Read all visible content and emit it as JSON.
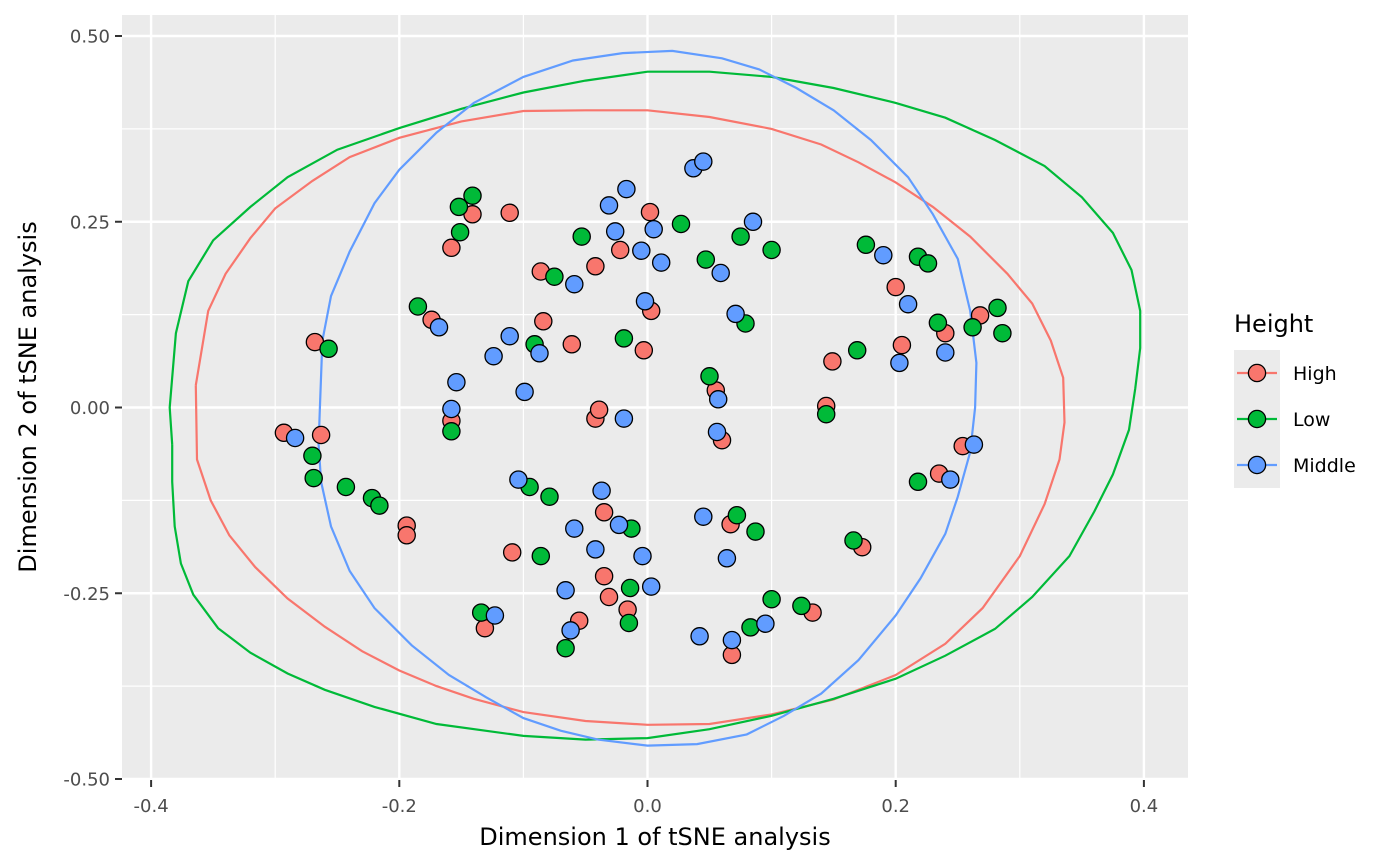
{
  "chart_data": {
    "type": "scatter",
    "title": "",
    "xlabel": "Dimension 1 of tSNE analysis",
    "ylabel": "Dimension 2 of tSNE analysis",
    "xlim": [
      -0.4,
      0.4
    ],
    "ylim": [
      -0.5,
      0.5
    ],
    "x_ticks": [
      -0.4,
      -0.2,
      0.0,
      0.2,
      0.4
    ],
    "x_tick_labels": [
      "-0.4",
      "-0.2",
      "0.0",
      "0.2",
      "0.4"
    ],
    "y_ticks": [
      -0.5,
      -0.25,
      0.0,
      0.25,
      0.5
    ],
    "y_tick_labels": [
      "-0.50",
      "-0.25",
      "0.00",
      "0.25",
      "0.50"
    ],
    "grid": true,
    "legend": {
      "title": "Height",
      "position": "right"
    },
    "series": [
      {
        "name": "High",
        "color": "#F8766D",
        "points": [
          [
            -0.268,
            0.088
          ],
          [
            -0.263,
            -0.037
          ],
          [
            -0.293,
            -0.034
          ],
          [
            -0.194,
            -0.159
          ],
          [
            -0.194,
            -0.172
          ],
          [
            -0.174,
            0.118
          ],
          [
            -0.158,
            -0.018
          ],
          [
            -0.158,
            0.215
          ],
          [
            -0.141,
            0.26
          ],
          [
            -0.111,
            0.262
          ],
          [
            -0.086,
            0.183
          ],
          [
            -0.084,
            0.116
          ],
          [
            -0.061,
            0.085
          ],
          [
            -0.042,
            0.19
          ],
          [
            -0.042,
            -0.015
          ],
          [
            -0.039,
            -0.003
          ],
          [
            -0.022,
            0.212
          ],
          [
            0.002,
            0.263
          ],
          [
            0.003,
            0.13
          ],
          [
            -0.003,
            0.077
          ],
          [
            -0.109,
            -0.195
          ],
          [
            -0.131,
            -0.297
          ],
          [
            -0.035,
            -0.227
          ],
          [
            -0.035,
            -0.141
          ],
          [
            -0.031,
            -0.255
          ],
          [
            -0.016,
            -0.272
          ],
          [
            -0.055,
            -0.287
          ],
          [
            0.055,
            0.023
          ],
          [
            0.06,
            -0.044
          ],
          [
            0.067,
            -0.157
          ],
          [
            0.068,
            -0.333
          ],
          [
            0.133,
            -0.276
          ],
          [
            0.144,
            0.002
          ],
          [
            0.149,
            0.062
          ],
          [
            0.173,
            -0.188
          ],
          [
            0.2,
            0.162
          ],
          [
            0.205,
            0.084
          ],
          [
            0.235,
            -0.089
          ],
          [
            0.24,
            0.1
          ],
          [
            0.254,
            -0.052
          ],
          [
            0.268,
            0.124
          ]
        ]
      },
      {
        "name": "Low",
        "color": "#00BA38",
        "points": [
          [
            -0.257,
            0.079
          ],
          [
            -0.27,
            -0.065
          ],
          [
            -0.269,
            -0.095
          ],
          [
            -0.243,
            -0.107
          ],
          [
            -0.222,
            -0.122
          ],
          [
            -0.216,
            -0.132
          ],
          [
            -0.185,
            0.136
          ],
          [
            -0.158,
            -0.032
          ],
          [
            -0.152,
            0.27
          ],
          [
            -0.151,
            0.236
          ],
          [
            -0.141,
            0.285
          ],
          [
            -0.091,
            0.085
          ],
          [
            -0.095,
            -0.107
          ],
          [
            -0.086,
            -0.2
          ],
          [
            -0.079,
            -0.12
          ],
          [
            -0.066,
            -0.324
          ],
          [
            -0.053,
            0.23
          ],
          [
            -0.075,
            0.176
          ],
          [
            -0.019,
            0.093
          ],
          [
            -0.013,
            -0.163
          ],
          [
            -0.014,
            -0.243
          ],
          [
            -0.015,
            -0.29
          ],
          [
            0.027,
            0.247
          ],
          [
            0.047,
            0.199
          ],
          [
            0.05,
            0.042
          ],
          [
            -0.134,
            -0.276
          ],
          [
            0.072,
            -0.145
          ],
          [
            0.075,
            0.23
          ],
          [
            0.079,
            0.113
          ],
          [
            0.083,
            -0.296
          ],
          [
            0.087,
            -0.167
          ],
          [
            0.1,
            0.212
          ],
          [
            0.1,
            -0.258
          ],
          [
            0.124,
            -0.267
          ],
          [
            0.144,
            -0.009
          ],
          [
            0.166,
            -0.179
          ],
          [
            0.169,
            0.077
          ],
          [
            0.176,
            0.219
          ],
          [
            0.218,
            0.203
          ],
          [
            0.218,
            -0.1
          ],
          [
            0.226,
            0.194
          ],
          [
            0.234,
            0.114
          ],
          [
            0.262,
            0.108
          ],
          [
            0.282,
            0.134
          ],
          [
            0.286,
            0.1
          ]
        ]
      },
      {
        "name": "Middle",
        "color": "#619CFF",
        "points": [
          [
            -0.284,
            -0.041
          ],
          [
            -0.168,
            0.108
          ],
          [
            -0.158,
            -0.002
          ],
          [
            -0.154,
            0.034
          ],
          [
            -0.124,
            0.069
          ],
          [
            -0.111,
            0.096
          ],
          [
            -0.099,
            0.021
          ],
          [
            -0.087,
            0.073
          ],
          [
            -0.059,
            0.166
          ],
          [
            -0.031,
            0.272
          ],
          [
            -0.026,
            0.237
          ],
          [
            -0.017,
            0.294
          ],
          [
            -0.019,
            -0.015
          ],
          [
            -0.005,
            0.211
          ],
          [
            0.005,
            0.24
          ],
          [
            0.011,
            0.195
          ],
          [
            -0.002,
            0.143
          ],
          [
            0.037,
            0.322
          ],
          [
            0.045,
            0.331
          ],
          [
            0.059,
            0.181
          ],
          [
            0.071,
            0.126
          ],
          [
            0.085,
            0.25
          ],
          [
            0.057,
            0.011
          ],
          [
            0.056,
            -0.033
          ],
          [
            -0.104,
            -0.097
          ],
          [
            -0.123,
            -0.28
          ],
          [
            -0.059,
            -0.163
          ],
          [
            -0.037,
            -0.112
          ],
          [
            -0.042,
            -0.191
          ],
          [
            -0.023,
            -0.158
          ],
          [
            -0.004,
            -0.2
          ],
          [
            0.003,
            -0.241
          ],
          [
            -0.066,
            -0.246
          ],
          [
            -0.062,
            -0.3
          ],
          [
            0.045,
            -0.147
          ],
          [
            0.042,
            -0.308
          ],
          [
            0.064,
            -0.203
          ],
          [
            0.068,
            -0.313
          ],
          [
            0.095,
            -0.291
          ],
          [
            0.19,
            0.205
          ],
          [
            0.203,
            0.06
          ],
          [
            0.21,
            0.139
          ],
          [
            0.24,
            0.074
          ],
          [
            0.244,
            -0.097
          ],
          [
            0.263,
            -0.05
          ]
        ]
      }
    ],
    "ellipses": [
      {
        "name": "High",
        "color": "#F8766D",
        "points": [
          [
            -0.364,
            0.03
          ],
          [
            -0.363,
            -0.07
          ],
          [
            -0.352,
            -0.125
          ],
          [
            -0.337,
            -0.172
          ],
          [
            -0.316,
            -0.215
          ],
          [
            -0.29,
            -0.257
          ],
          [
            -0.26,
            -0.295
          ],
          [
            -0.23,
            -0.328
          ],
          [
            -0.2,
            -0.354
          ],
          [
            -0.17,
            -0.375
          ],
          [
            -0.14,
            -0.392
          ],
          [
            -0.1,
            -0.41
          ],
          [
            -0.05,
            -0.422
          ],
          [
            0.0,
            -0.427
          ],
          [
            0.05,
            -0.426
          ],
          [
            0.1,
            -0.413
          ],
          [
            0.15,
            -0.393
          ],
          [
            0.2,
            -0.36
          ],
          [
            0.24,
            -0.318
          ],
          [
            0.27,
            -0.27
          ],
          [
            0.3,
            -0.2
          ],
          [
            0.32,
            -0.13
          ],
          [
            0.332,
            -0.07
          ],
          [
            0.336,
            -0.02
          ],
          [
            0.335,
            0.04
          ],
          [
            0.325,
            0.09
          ],
          [
            0.31,
            0.14
          ],
          [
            0.29,
            0.18
          ],
          [
            0.26,
            0.23
          ],
          [
            0.23,
            0.27
          ],
          [
            0.2,
            0.303
          ],
          [
            0.17,
            0.33
          ],
          [
            0.14,
            0.354
          ],
          [
            0.1,
            0.375
          ],
          [
            0.05,
            0.391
          ],
          [
            0.0,
            0.4
          ],
          [
            -0.05,
            0.4
          ],
          [
            -0.1,
            0.399
          ],
          [
            -0.15,
            0.385
          ],
          [
            -0.2,
            0.363
          ],
          [
            -0.24,
            0.337
          ],
          [
            -0.27,
            0.305
          ],
          [
            -0.3,
            0.268
          ],
          [
            -0.32,
            0.228
          ],
          [
            -0.34,
            0.18
          ],
          [
            -0.354,
            0.13
          ],
          [
            -0.364,
            0.03
          ]
        ]
      },
      {
        "name": "Low",
        "color": "#00BA38",
        "points": [
          [
            -0.383,
            -0.05
          ],
          [
            -0.383,
            -0.1
          ],
          [
            -0.381,
            -0.16
          ],
          [
            -0.376,
            -0.21
          ],
          [
            -0.366,
            -0.252
          ],
          [
            -0.346,
            -0.297
          ],
          [
            -0.32,
            -0.33
          ],
          [
            -0.29,
            -0.358
          ],
          [
            -0.26,
            -0.38
          ],
          [
            -0.22,
            -0.403
          ],
          [
            -0.17,
            -0.426
          ],
          [
            -0.1,
            -0.442
          ],
          [
            -0.05,
            -0.447
          ],
          [
            0.0,
            -0.445
          ],
          [
            0.05,
            -0.433
          ],
          [
            0.1,
            -0.415
          ],
          [
            0.15,
            -0.392
          ],
          [
            0.2,
            -0.365
          ],
          [
            0.24,
            -0.334
          ],
          [
            0.28,
            -0.298
          ],
          [
            0.31,
            -0.255
          ],
          [
            0.34,
            -0.2
          ],
          [
            0.36,
            -0.14
          ],
          [
            0.375,
            -0.09
          ],
          [
            0.388,
            -0.03
          ],
          [
            0.393,
            0.025
          ],
          [
            0.397,
            0.08
          ],
          [
            0.397,
            0.13
          ],
          [
            0.39,
            0.185
          ],
          [
            0.375,
            0.235
          ],
          [
            0.35,
            0.283
          ],
          [
            0.32,
            0.325
          ],
          [
            0.28,
            0.36
          ],
          [
            0.24,
            0.39
          ],
          [
            0.2,
            0.41
          ],
          [
            0.15,
            0.43
          ],
          [
            0.1,
            0.445
          ],
          [
            0.05,
            0.452
          ],
          [
            0.0,
            0.452
          ],
          [
            -0.05,
            0.44
          ],
          [
            -0.1,
            0.424
          ],
          [
            -0.15,
            0.402
          ],
          [
            -0.2,
            0.376
          ],
          [
            -0.25,
            0.347
          ],
          [
            -0.29,
            0.31
          ],
          [
            -0.32,
            0.27
          ],
          [
            -0.35,
            0.225
          ],
          [
            -0.37,
            0.17
          ],
          [
            -0.38,
            0.1
          ],
          [
            -0.385,
            0.0
          ],
          [
            -0.383,
            -0.05
          ]
        ]
      },
      {
        "name": "Middle",
        "color": "#619CFF",
        "points": [
          [
            -0.264,
            0.0
          ],
          [
            -0.265,
            -0.05
          ],
          [
            -0.263,
            -0.1
          ],
          [
            -0.255,
            -0.16
          ],
          [
            -0.24,
            -0.22
          ],
          [
            -0.22,
            -0.27
          ],
          [
            -0.19,
            -0.32
          ],
          [
            -0.16,
            -0.36
          ],
          [
            -0.13,
            -0.39
          ],
          [
            -0.1,
            -0.418
          ],
          [
            -0.07,
            -0.435
          ],
          [
            -0.04,
            -0.447
          ],
          [
            0.0,
            -0.455
          ],
          [
            0.04,
            -0.453
          ],
          [
            0.08,
            -0.44
          ],
          [
            0.11,
            -0.415
          ],
          [
            0.14,
            -0.385
          ],
          [
            0.17,
            -0.34
          ],
          [
            0.2,
            -0.28
          ],
          [
            0.22,
            -0.23
          ],
          [
            0.24,
            -0.17
          ],
          [
            0.25,
            -0.12
          ],
          [
            0.26,
            -0.06
          ],
          [
            0.264,
            0.0
          ],
          [
            0.265,
            0.06
          ],
          [
            0.26,
            0.13
          ],
          [
            0.25,
            0.2
          ],
          [
            0.23,
            0.26
          ],
          [
            0.21,
            0.31
          ],
          [
            0.18,
            0.36
          ],
          [
            0.15,
            0.4
          ],
          [
            0.12,
            0.43
          ],
          [
            0.09,
            0.455
          ],
          [
            0.06,
            0.47
          ],
          [
            0.02,
            0.48
          ],
          [
            -0.02,
            0.477
          ],
          [
            -0.06,
            0.467
          ],
          [
            -0.1,
            0.445
          ],
          [
            -0.14,
            0.41
          ],
          [
            -0.17,
            0.37
          ],
          [
            -0.2,
            0.32
          ],
          [
            -0.22,
            0.275
          ],
          [
            -0.24,
            0.21
          ],
          [
            -0.255,
            0.15
          ],
          [
            -0.262,
            0.09
          ],
          [
            -0.264,
            0.0
          ]
        ]
      }
    ]
  }
}
